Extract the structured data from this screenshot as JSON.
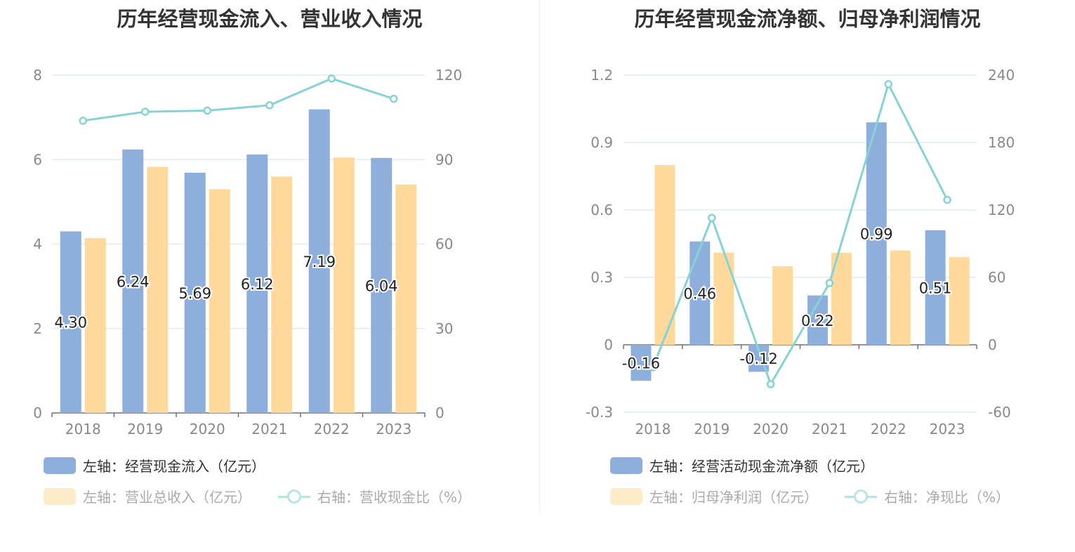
{
  "left": {
    "title": "历年经营现金流入、营业收入情况",
    "legend": {
      "bar1": "左轴：经营现金流入（亿元）",
      "bar2": "左轴：营业总收入（亿元）",
      "line": "右轴：营收现金比（%）"
    }
  },
  "right": {
    "title": "历年经营现金流净额、归母净利润情况",
    "legend": {
      "bar1": "左轴：经营活动现金流净额（亿元）",
      "bar2": "左轴：归母净利润（亿元）",
      "line": "右轴：净现比（%）"
    }
  },
  "colors": {
    "bar1": "#8eaedb",
    "bar2": "#fed99b",
    "line": "#86d3d6",
    "axis_text": "#888888",
    "grid": "#e3eaf2"
  },
  "chart_data": [
    {
      "type": "bar",
      "title": "历年经营现金流入、营业收入情况",
      "categories": [
        "2018",
        "2019",
        "2020",
        "2021",
        "2022",
        "2023"
      ],
      "left_axis": {
        "ylim": [
          0,
          8
        ],
        "ticks": [
          "0",
          "2",
          "4",
          "6",
          "8"
        ]
      },
      "right_axis": {
        "ylim": [
          0,
          120
        ],
        "ticks": [
          "0",
          "30",
          "60",
          "90",
          "120"
        ]
      },
      "series": [
        {
          "name": "左轴：经营现金流入（亿元）",
          "axis": "left",
          "type": "bar",
          "values": [
            4.3,
            6.24,
            5.69,
            6.12,
            7.19,
            6.04
          ],
          "labels": [
            "4.30",
            "6.24",
            "5.69",
            "6.12",
            "7.19",
            "6.04"
          ]
        },
        {
          "name": "左轴：营业总收入（亿元）",
          "axis": "left",
          "type": "bar",
          "values": [
            4.14,
            5.83,
            5.3,
            5.6,
            6.05,
            5.41
          ]
        },
        {
          "name": "右轴：营收现金比（%）",
          "axis": "right",
          "type": "line",
          "values": [
            103.8,
            107.0,
            107.4,
            109.3,
            118.8,
            111.6
          ]
        }
      ],
      "legend_position": "bottom",
      "grid": true
    },
    {
      "type": "bar",
      "title": "历年经营现金流净额、归母净利润情况",
      "categories": [
        "2018",
        "2019",
        "2020",
        "2021",
        "2022",
        "2023"
      ],
      "left_axis": {
        "ylim": [
          -0.3,
          1.2
        ],
        "ticks": [
          "-0.3",
          "0",
          "0.3",
          "0.6",
          "0.9",
          "1.2"
        ]
      },
      "right_axis": {
        "ylim": [
          -60,
          240
        ],
        "ticks": [
          "-60",
          "0",
          "60",
          "120",
          "180",
          "240"
        ]
      },
      "series": [
        {
          "name": "左轴：经营活动现金流净额（亿元）",
          "axis": "left",
          "type": "bar",
          "values": [
            -0.16,
            0.46,
            -0.12,
            0.22,
            0.99,
            0.51
          ],
          "labels": [
            "-0.16",
            "0.46",
            "-0.12",
            "0.22",
            "0.99",
            "0.51"
          ]
        },
        {
          "name": "左轴：归母净利润（亿元）",
          "axis": "left",
          "type": "bar",
          "values": [
            0.8,
            0.41,
            0.35,
            0.41,
            0.42,
            0.39
          ]
        },
        {
          "name": "右轴：净现比（%）",
          "axis": "right",
          "type": "line",
          "values": [
            -20,
            113,
            -35,
            55,
            232,
            129
          ]
        }
      ],
      "legend_position": "bottom",
      "grid": true
    }
  ]
}
